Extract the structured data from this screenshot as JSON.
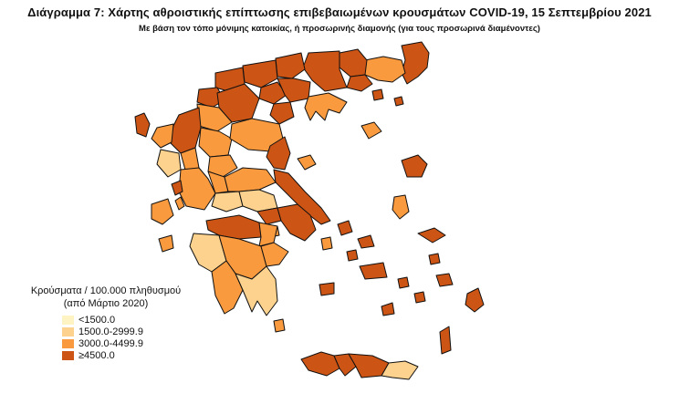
{
  "title": "Διάγραμμα 7: Χάρτης αθροιστικής επίπτωσης επιβεβαιωμένων κρουσμάτων COVID-19, 15 Σεπτεμβρίου 2021",
  "subtitle": "Με βάση τον τόπο μόνιμης κατοικίας, ή προσωρινής διαμονής (για τους προσωρινά διαμένοντες)",
  "legend": {
    "title_line1": "Κρούσματα / 100.000 πληθυσμού",
    "title_line2": "(από Μάρτιο 2020)",
    "items": [
      {
        "label": "<1500.0",
        "color": "#fdf3c3"
      },
      {
        "label": "1500.0-2999.9",
        "color": "#fcd28e"
      },
      {
        "label": "3000.0-4499.9",
        "color": "#f99a3f"
      },
      {
        "label": "≥4500.0",
        "color": "#cc5414"
      }
    ]
  },
  "colors": {
    "border": "#111111",
    "background": "#ffffff"
  }
}
